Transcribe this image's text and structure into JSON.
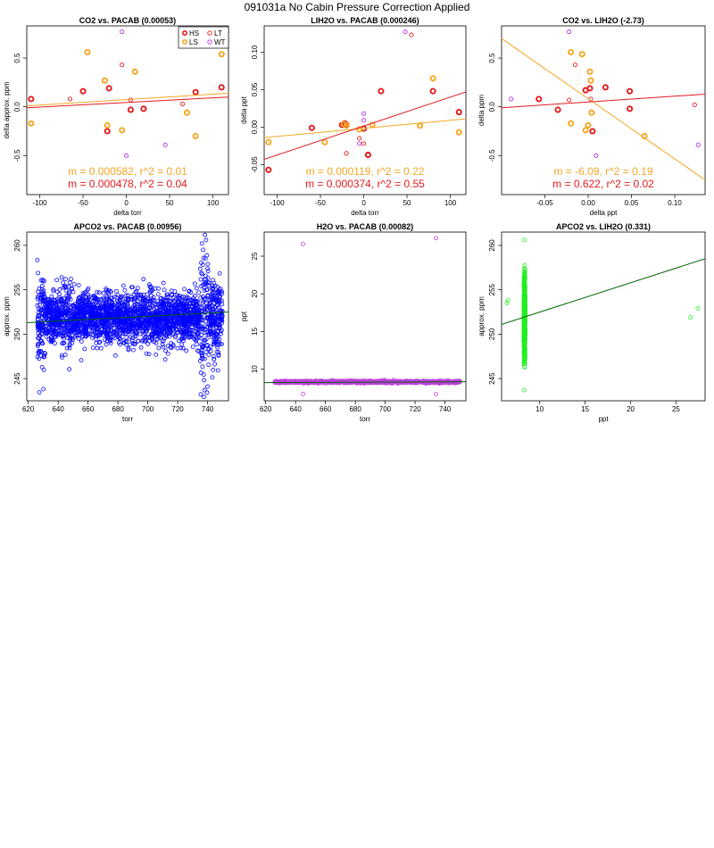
{
  "page": {
    "title": "091031a   No Cabin Pressure Correction Applied"
  },
  "legend": {
    "entries": [
      {
        "label": "HS",
        "color": "#e31a1c",
        "thick": true
      },
      {
        "label": "LT",
        "color": "#e31a1c",
        "thick": false
      },
      {
        "label": "LS",
        "color": "#f5a623",
        "thick": true
      },
      {
        "label": "WT",
        "color": "#b533e0",
        "thick": false
      }
    ]
  },
  "colors": {
    "red": "#e31a1c",
    "orange": "#f5a623",
    "purple": "#b533e0",
    "blue": "#0000ff",
    "green": "#22ee22",
    "darkgreen": "#006400",
    "magenta": "#c040e0"
  },
  "chart_data": [
    {
      "type": "scatter",
      "title": "CO2 vs. PACAB (0.00053)",
      "xlabel": "delta torr",
      "ylabel": "delta approx. ppm",
      "xlim": [
        -115,
        118
      ],
      "ylim": [
        -0.9,
        0.83
      ],
      "xticks": [
        -100,
        -50,
        0,
        50,
        100
      ],
      "xtick_labels": [
        "-100",
        "-50",
        "0",
        "50",
        "100"
      ],
      "yticks": [
        -0.5,
        0.0,
        0.5
      ],
      "ytick_labels": [
        "-0.5",
        "0.0",
        "0.5"
      ],
      "show_legend": true,
      "series": [
        {
          "name": "HS",
          "color": "red",
          "thick": true,
          "x": [
            -110,
            -50,
            -20,
            -22,
            5,
            20,
            80,
            110
          ],
          "y": [
            0.08,
            0.16,
            0.19,
            -0.25,
            -0.03,
            -0.02,
            0.15,
            0.2
          ]
        },
        {
          "name": "LT",
          "color": "red",
          "thick": false,
          "x": [
            -65,
            -5,
            5,
            65
          ],
          "y": [
            0.08,
            0.43,
            0.07,
            0.03
          ]
        },
        {
          "name": "LS",
          "color": "orange",
          "thick": true,
          "x": [
            -110,
            -45,
            -25,
            -22,
            -5,
            10,
            70,
            80,
            110
          ],
          "y": [
            -0.17,
            0.56,
            0.27,
            -0.19,
            -0.24,
            0.36,
            -0.06,
            -0.3,
            0.54
          ]
        },
        {
          "name": "WT",
          "color": "purple",
          "thick": false,
          "x": [
            -5,
            0,
            45
          ],
          "y": [
            0.77,
            -0.5,
            -0.39
          ]
        }
      ],
      "fits": [
        {
          "color": "orange",
          "x": [
            -115,
            118
          ],
          "y": [
            0.01,
            0.14
          ]
        },
        {
          "color": "red",
          "x": [
            -115,
            118
          ],
          "y": [
            -0.01,
            0.1
          ]
        }
      ],
      "annotations": [
        {
          "text": "m = 0.000582, r^2 = 0.01",
          "color": "orange"
        },
        {
          "text": "m = 0.000478, r^2 = 0.04",
          "color": "red"
        }
      ]
    },
    {
      "type": "scatter",
      "title": "LIH2O vs. PACAB (0.000246)",
      "xlabel": "delta torr",
      "ylabel": "delta ppt",
      "xlim": [
        -115,
        118
      ],
      "ylim": [
        -0.09,
        0.135
      ],
      "xticks": [
        -100,
        -50,
        0,
        50,
        100
      ],
      "xtick_labels": [
        "-100",
        "-50",
        "0",
        "50",
        "100"
      ],
      "yticks": [
        -0.05,
        0.0,
        0.05,
        0.1
      ],
      "ytick_labels": [
        "-0.05",
        "0.00",
        "0.05",
        "0.10"
      ],
      "show_legend": false,
      "series": [
        {
          "name": "HS",
          "color": "red",
          "thick": true,
          "x": [
            -110,
            -60,
            -25,
            -22,
            -20,
            0,
            5,
            20,
            80,
            110
          ],
          "y": [
            -0.057,
            -0.001,
            0.003,
            0.005,
            0.003,
            -0.002,
            -0.037,
            0.048,
            0.048,
            0.02
          ]
        },
        {
          "name": "LT",
          "color": "red",
          "thick": false,
          "x": [
            -20,
            -5,
            0,
            5,
            55
          ],
          "y": [
            -0.035,
            -0.015,
            -0.022,
            -0.037,
            0.123
          ]
        },
        {
          "name": "LS",
          "color": "orange",
          "thick": true,
          "x": [
            -110,
            -45,
            -23,
            -20,
            -5,
            10,
            65,
            80,
            110
          ],
          "y": [
            -0.02,
            -0.02,
            0.004,
            0.002,
            -0.003,
            0.003,
            0.002,
            0.065,
            -0.007
          ]
        },
        {
          "name": "WT",
          "color": "purple",
          "thick": false,
          "x": [
            -5,
            0,
            0,
            48
          ],
          "y": [
            -0.022,
            0.009,
            0.018,
            0.127
          ]
        }
      ],
      "fits": [
        {
          "color": "orange",
          "x": [
            -115,
            118
          ],
          "y": [
            -0.014,
            0.011
          ]
        },
        {
          "color": "red",
          "x": [
            -115,
            118
          ],
          "y": [
            -0.043,
            0.047
          ]
        }
      ],
      "annotations": [
        {
          "text": "m = 0.000119, r^2 = 0.22",
          "color": "orange"
        },
        {
          "text": "m = 0.000374, r^2 = 0.55",
          "color": "red"
        }
      ]
    },
    {
      "type": "scatter",
      "title": "CO2 vs. LIH2O (-2.73)",
      "xlabel": "delta ppt",
      "ylabel": "delta ppm",
      "xlim": [
        -0.1,
        0.135
      ],
      "ylim": [
        -0.9,
        0.83
      ],
      "xticks": [
        -0.05,
        0.0,
        0.05,
        0.1
      ],
      "xtick_labels": [
        "-0.05",
        "0.00",
        "0.05",
        "0.10"
      ],
      "yticks": [
        -0.5,
        0.0,
        0.5
      ],
      "ytick_labels": [
        "-0.5",
        "0.0",
        "0.5"
      ],
      "show_legend": false,
      "series": [
        {
          "name": "HS",
          "color": "red",
          "thick": true,
          "x": [
            -0.057,
            -0.035,
            -0.003,
            0.002,
            0.005,
            0.02,
            0.048,
            0.048
          ],
          "y": [
            0.08,
            -0.03,
            0.17,
            0.19,
            -0.25,
            0.2,
            0.16,
            -0.02
          ]
        },
        {
          "name": "LT",
          "color": "red",
          "thick": false,
          "x": [
            -0.022,
            -0.015,
            0.003,
            0.123
          ],
          "y": [
            0.07,
            0.43,
            0.08,
            0.02
          ]
        },
        {
          "name": "LS",
          "color": "orange",
          "thick": true,
          "x": [
            -0.02,
            -0.02,
            -0.007,
            -0.003,
            0.002,
            0.003,
            0.004,
            0.065,
            0.0
          ],
          "y": [
            0.56,
            -0.17,
            0.54,
            -0.24,
            0.36,
            0.27,
            -0.06,
            -0.3,
            -0.19
          ]
        },
        {
          "name": "WT",
          "color": "purple",
          "thick": false,
          "x": [
            -0.022,
            0.009,
            0.127,
            -0.089
          ],
          "y": [
            0.77,
            -0.5,
            -0.39,
            0.08
          ]
        }
      ],
      "fits": [
        {
          "color": "orange",
          "x": [
            -0.1,
            0.135
          ],
          "y": [
            0.7,
            -0.75
          ]
        },
        {
          "color": "red",
          "x": [
            -0.1,
            0.135
          ],
          "y": [
            -0.01,
            0.13
          ]
        }
      ],
      "annotations": [
        {
          "text": "m = -6.09, r^2 = 0.19",
          "color": "orange"
        },
        {
          "text": "m = 0.622, r^2 = 0.02",
          "color": "red"
        }
      ]
    },
    {
      "type": "scatter",
      "title": "APCO2 vs. PACAB (0.00956)",
      "xlabel": "torr",
      "ylabel": "approx. ppm",
      "xlim": [
        619,
        754
      ],
      "ylim": [
        242.5,
        261.5
      ],
      "xticks": [
        620,
        640,
        660,
        680,
        700,
        720,
        740
      ],
      "xtick_labels": [
        "620",
        "640",
        "660",
        "680",
        "700",
        "720",
        "740"
      ],
      "yticks": [
        245,
        250,
        255,
        260
      ],
      "ytick_labels": [
        "245",
        "250",
        "255",
        "260"
      ],
      "series_style": "cloud",
      "series_color": "blue",
      "cloud": {
        "x_range": [
          626,
          750
        ],
        "y_center": 251.8,
        "y_spread": 1.4,
        "count": 2600,
        "clusters": [
          {
            "x": 628,
            "spread": 2.4
          },
          {
            "x": 645,
            "spread": 2.2
          },
          {
            "x": 738,
            "spread": 4.0
          },
          {
            "x": 746,
            "spread": 2.6
          }
        ],
        "extremes": [
          [
            739,
            260.6
          ],
          [
            738,
            243.7
          ],
          [
            740,
            244.1
          ],
          [
            645,
            256.2
          ],
          [
            737,
            259.5
          ]
        ]
      },
      "fits": [
        {
          "color": "darkgreen",
          "x": [
            619,
            754
          ],
          "y": [
            251.3,
            252.5
          ]
        }
      ],
      "annotations": []
    },
    {
      "type": "scatter",
      "title": "H2O vs. PACAB (0.00082)",
      "xlabel": "torr",
      "ylabel": "ppt",
      "xlim": [
        619,
        754
      ],
      "ylim": [
        5.8,
        28.2
      ],
      "xticks": [
        620,
        640,
        660,
        680,
        700,
        720,
        740
      ],
      "xtick_labels": [
        "620",
        "640",
        "660",
        "680",
        "700",
        "720",
        "740"
      ],
      "yticks": [
        10,
        15,
        20,
        25
      ],
      "ytick_labels": [
        "10",
        "15",
        "20",
        "25"
      ],
      "series_style": "band",
      "series_color": "magenta",
      "cloud": {
        "x_range": [
          626,
          750
        ],
        "y_center": 8.3,
        "y_spread": 0.07,
        "count": 1400,
        "clusters": [],
        "extremes": [
          [
            645,
            26.6
          ],
          [
            734,
            27.4
          ],
          [
            645,
            6.7
          ],
          [
            734,
            6.7
          ]
        ]
      },
      "fits": [
        {
          "color": "darkgreen",
          "x": [
            619,
            754
          ],
          "y": [
            8.22,
            8.33
          ]
        }
      ],
      "annotations": []
    },
    {
      "type": "scatter",
      "title": "APCO2 vs. LIH2O (0.331)",
      "xlabel": "ppt",
      "ylabel": "approx. ppm",
      "xlim": [
        5.8,
        28.2
      ],
      "ylim": [
        242.5,
        261.5
      ],
      "xticks": [
        10,
        15,
        20,
        25
      ],
      "xtick_labels": [
        "10",
        "15",
        "20",
        "25"
      ],
      "yticks": [
        245,
        250,
        255,
        260
      ],
      "ytick_labels": [
        "245",
        "250",
        "255",
        "260"
      ],
      "series_style": "vertical",
      "series_color": "green",
      "cloud": {
        "x_range": [
          8.25,
          8.4
        ],
        "y_center": 251.8,
        "y_spread": 2.0,
        "count": 900,
        "clusters": [],
        "extremes": [
          [
            8.3,
            260.6
          ],
          [
            8.3,
            243.7
          ],
          [
            6.5,
            253.8
          ],
          [
            6.4,
            253.5
          ],
          [
            26.6,
            251.9
          ],
          [
            27.4,
            252.9
          ]
        ]
      },
      "fits": [
        {
          "color": "darkgreen",
          "x": [
            5.8,
            28.2
          ],
          "y": [
            251.1,
            258.5
          ]
        }
      ],
      "annotations": []
    }
  ]
}
